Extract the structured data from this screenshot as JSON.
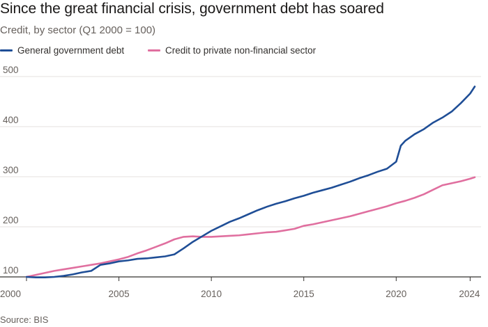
{
  "title": "Since the great financial crisis, government debt has soared",
  "subtitle": "Credit, by sector (Q1 2000 = 100)",
  "source": "Source: BIS",
  "colors": {
    "government": "#1f4e96",
    "private": "#e06f9f",
    "grid": "#e6e2df",
    "axis": "#33302e"
  },
  "chart_data": {
    "type": "line",
    "title": "Since the great financial crisis, government debt has soared",
    "subtitle": "Credit, by sector (Q1 2000 = 100)",
    "xlabel": "",
    "ylabel": "",
    "xlim": [
      2000,
      2024.25
    ],
    "ylim": [
      100,
      500
    ],
    "x_ticks": [
      2000,
      2005,
      2010,
      2015,
      2020,
      2024
    ],
    "y_ticks": [
      100,
      200,
      300,
      400,
      500
    ],
    "grid": "horizontal",
    "legend": "top-left",
    "series": [
      {
        "name": "General government debt",
        "color": "#1f4e96",
        "points": [
          [
            2000,
            100
          ],
          [
            2000.5,
            99
          ],
          [
            2001,
            99
          ],
          [
            2001.5,
            100
          ],
          [
            2002,
            102
          ],
          [
            2002.5,
            105
          ],
          [
            2003,
            109
          ],
          [
            2003.5,
            112
          ],
          [
            2004,
            124
          ],
          [
            2004.5,
            127
          ],
          [
            2005,
            131
          ],
          [
            2005.5,
            133
          ],
          [
            2006,
            136
          ],
          [
            2006.5,
            137
          ],
          [
            2007,
            139
          ],
          [
            2007.5,
            141
          ],
          [
            2008,
            145
          ],
          [
            2008.5,
            157
          ],
          [
            2009,
            170
          ],
          [
            2009.5,
            181
          ],
          [
            2010,
            192
          ],
          [
            2010.5,
            201
          ],
          [
            2011,
            210
          ],
          [
            2011.5,
            217
          ],
          [
            2012,
            225
          ],
          [
            2012.5,
            233
          ],
          [
            2013,
            240
          ],
          [
            2013.5,
            246
          ],
          [
            2014,
            251
          ],
          [
            2014.5,
            257
          ],
          [
            2015,
            262
          ],
          [
            2015.5,
            268
          ],
          [
            2016,
            273
          ],
          [
            2016.5,
            278
          ],
          [
            2017,
            284
          ],
          [
            2017.5,
            290
          ],
          [
            2018,
            297
          ],
          [
            2018.5,
            303
          ],
          [
            2019,
            310
          ],
          [
            2019.5,
            316
          ],
          [
            2020,
            330
          ],
          [
            2020.25,
            362
          ],
          [
            2020.5,
            372
          ],
          [
            2021,
            385
          ],
          [
            2021.5,
            395
          ],
          [
            2022,
            408
          ],
          [
            2022.5,
            418
          ],
          [
            2023,
            430
          ],
          [
            2023.5,
            447
          ],
          [
            2024,
            466
          ],
          [
            2024.25,
            480
          ]
        ]
      },
      {
        "name": "Credit to private non-financial sector",
        "color": "#e06f9f",
        "points": [
          [
            2000,
            100
          ],
          [
            2000.5,
            104
          ],
          [
            2001,
            108
          ],
          [
            2001.5,
            112
          ],
          [
            2002,
            115
          ],
          [
            2002.5,
            118
          ],
          [
            2003,
            121
          ],
          [
            2003.5,
            124
          ],
          [
            2004,
            127
          ],
          [
            2004.5,
            131
          ],
          [
            2005,
            135
          ],
          [
            2005.5,
            140
          ],
          [
            2006,
            147
          ],
          [
            2006.5,
            153
          ],
          [
            2007,
            160
          ],
          [
            2007.5,
            167
          ],
          [
            2008,
            175
          ],
          [
            2008.5,
            180
          ],
          [
            2009,
            181
          ],
          [
            2009.5,
            180
          ],
          [
            2010,
            180
          ],
          [
            2010.5,
            181
          ],
          [
            2011,
            182
          ],
          [
            2011.5,
            183
          ],
          [
            2012,
            185
          ],
          [
            2012.5,
            187
          ],
          [
            2013,
            189
          ],
          [
            2013.5,
            190
          ],
          [
            2014,
            193
          ],
          [
            2014.5,
            196
          ],
          [
            2015,
            202
          ],
          [
            2015.5,
            205
          ],
          [
            2016,
            209
          ],
          [
            2016.5,
            213
          ],
          [
            2017,
            217
          ],
          [
            2017.5,
            221
          ],
          [
            2018,
            226
          ],
          [
            2018.5,
            231
          ],
          [
            2019,
            236
          ],
          [
            2019.5,
            241
          ],
          [
            2020,
            247
          ],
          [
            2020.5,
            252
          ],
          [
            2021,
            258
          ],
          [
            2021.5,
            265
          ],
          [
            2022,
            274
          ],
          [
            2022.5,
            283
          ],
          [
            2023,
            287
          ],
          [
            2023.5,
            291
          ],
          [
            2024,
            296
          ],
          [
            2024.25,
            299
          ]
        ]
      }
    ]
  }
}
